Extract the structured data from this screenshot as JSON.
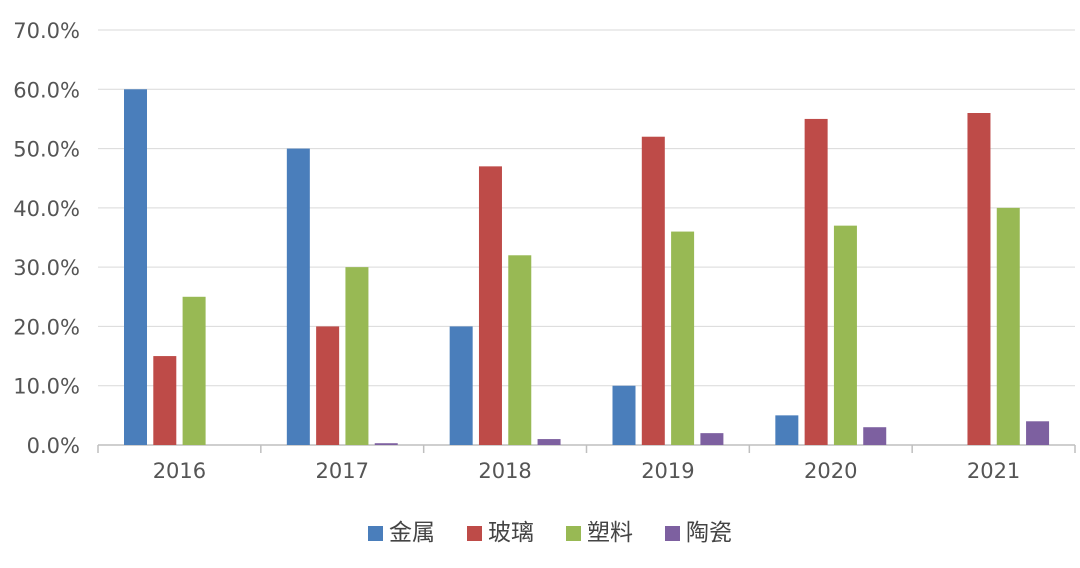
{
  "chart_data": {
    "type": "bar",
    "title": "",
    "xlabel": "",
    "ylabel": "",
    "categories": [
      "2016",
      "2017",
      "2018",
      "2019",
      "2020",
      "2021"
    ],
    "series": [
      {
        "name": "金属",
        "color": "#4a7ebb",
        "values": [
          60,
          50,
          20,
          10,
          5,
          0
        ]
      },
      {
        "name": "玻璃",
        "color": "#be4b48",
        "values": [
          15,
          20,
          47,
          52,
          55,
          56
        ]
      },
      {
        "name": "塑料",
        "color": "#98b954",
        "values": [
          25,
          30,
          32,
          36,
          37,
          40
        ]
      },
      {
        "name": "陶瓷",
        "color": "#7d60a0",
        "values": [
          0,
          0.3,
          1,
          2,
          3,
          4
        ]
      }
    ],
    "ylim": [
      0,
      70
    ],
    "yticks": [
      0,
      10,
      20,
      30,
      40,
      50,
      60,
      70
    ],
    "ytick_labels": [
      "0.0%",
      "10.0%",
      "20.0%",
      "30.0%",
      "40.0%",
      "50.0%",
      "60.0%",
      "70.0%"
    ],
    "grid": true,
    "legend_position": "bottom"
  }
}
